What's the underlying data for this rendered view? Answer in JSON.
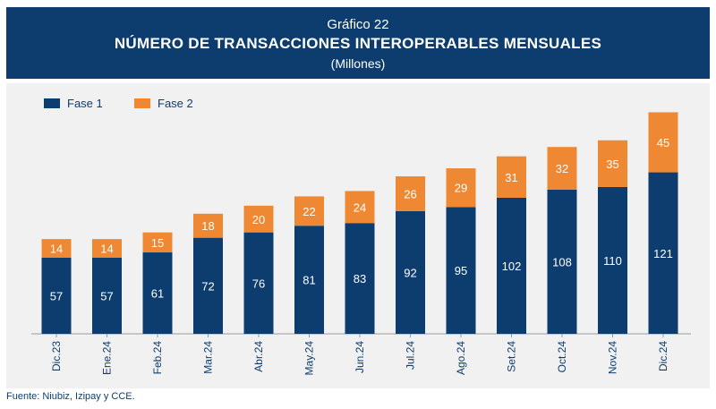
{
  "header": {
    "kicker": "Gráfico 22",
    "title": "NÚMERO DE TRANSACCIONES INTEROPERABLES MENSUALES",
    "unit": "(Millones)"
  },
  "footer": {
    "source": "Fuente: Niubiz, Izipay y CCE."
  },
  "colors": {
    "header_bg": "#0d3d6e",
    "fase1": "#0d3d6e",
    "fase2": "#ef8833",
    "panel_bg": "#f1f1f1"
  },
  "chart_data": {
    "type": "bar",
    "stacked": true,
    "categories": [
      "Dic.23",
      "Ene.24",
      "Feb.24",
      "Mar.24",
      "Abr.24",
      "May.24",
      "Jun.24",
      "Jul.24",
      "Ago.24",
      "Set.24",
      "Oct.24",
      "Nov.24",
      "Dic.24"
    ],
    "series": [
      {
        "name": "Fase 1",
        "color": "#0d3d6e",
        "values": [
          57,
          57,
          61,
          72,
          76,
          81,
          83,
          92,
          95,
          102,
          108,
          110,
          121
        ]
      },
      {
        "name": "Fase 2",
        "color": "#ef8833",
        "values": [
          14,
          14,
          15,
          18,
          20,
          22,
          24,
          26,
          29,
          31,
          32,
          35,
          45
        ]
      }
    ],
    "ylim": [
      0,
      171
    ],
    "legend_position": "top-left",
    "data_labels": true,
    "grid": false
  }
}
